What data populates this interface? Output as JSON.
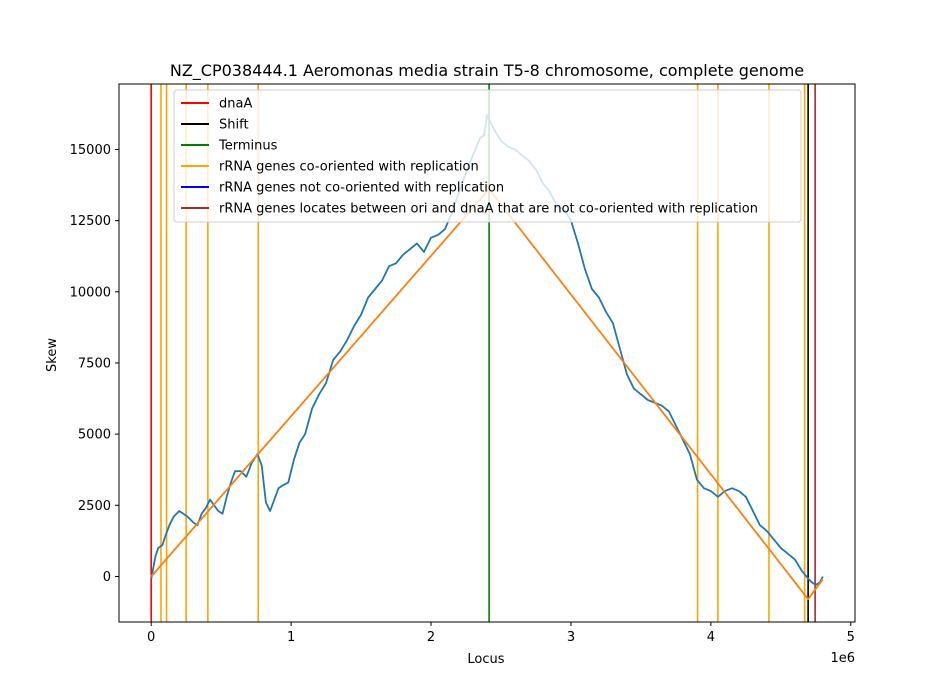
{
  "chart_data": {
    "type": "line",
    "title": "NZ_CP038444.1 Aeromonas media strain T5-8 chromosome, complete genome",
    "xlabel": "Locus",
    "ylabel": "Skew",
    "x_offset_label": "1e6",
    "xlim": [
      -230000,
      5030000
    ],
    "ylim": [
      -1600,
      17300
    ],
    "x_ticks": [
      0,
      1000000,
      2000000,
      3000000,
      4000000,
      5000000
    ],
    "x_tick_labels": [
      "0",
      "1",
      "2",
      "3",
      "4",
      "5"
    ],
    "y_ticks": [
      0,
      2500,
      5000,
      7500,
      10000,
      12500,
      15000
    ],
    "y_tick_labels": [
      "0",
      "2500",
      "5000",
      "7500",
      "10000",
      "12500",
      "15000"
    ],
    "legend_position": "upper-center",
    "legend": [
      {
        "label": "dnaA",
        "color": "#ff0000"
      },
      {
        "label": "Shift",
        "color": "#000000"
      },
      {
        "label": "Terminus",
        "color": "#008000"
      },
      {
        "label": "rRNA genes co-oriented with replication",
        "color": "#ffa500"
      },
      {
        "label": "rRNA genes not co-oriented with replication",
        "color": "#0000ff"
      },
      {
        "label": "rRNA genes locates between ori and dnaA that are not co-oriented with replication",
        "color": "#a52a2a"
      }
    ],
    "vertical_lines": [
      {
        "kind": "dnaA",
        "x": 0,
        "color": "#ff0000"
      },
      {
        "kind": "rRNA co-oriented",
        "x": 70000,
        "color": "#ffa500"
      },
      {
        "kind": "rRNA co-oriented",
        "x": 110000,
        "color": "#ffa500"
      },
      {
        "kind": "rRNA co-oriented",
        "x": 250000,
        "color": "#ffa500"
      },
      {
        "kind": "rRNA co-oriented",
        "x": 405000,
        "color": "#ffa500"
      },
      {
        "kind": "rRNA co-oriented",
        "x": 765000,
        "color": "#ffa500"
      },
      {
        "kind": "Terminus",
        "x": 2415000,
        "color": "#008000"
      },
      {
        "kind": "rRNA co-oriented",
        "x": 3905000,
        "color": "#ffa500"
      },
      {
        "kind": "rRNA co-oriented",
        "x": 4050000,
        "color": "#ffa500"
      },
      {
        "kind": "rRNA co-oriented",
        "x": 4415000,
        "color": "#ffa500"
      },
      {
        "kind": "rRNA co-oriented",
        "x": 4670000,
        "color": "#ffa500"
      },
      {
        "kind": "Shift",
        "x": 4695000,
        "color": "#000000"
      },
      {
        "kind": "rRNA between ori and dnaA",
        "x": 4745000,
        "color": "#a52a2a"
      }
    ],
    "series": [
      {
        "color": "#1f77b4",
        "x": [
          0,
          30000,
          50000,
          80000,
          100000,
          130000,
          160000,
          200000,
          230000,
          260000,
          300000,
          330000,
          360000,
          390000,
          420000,
          450000,
          480000,
          510000,
          540000,
          570000,
          600000,
          640000,
          680000,
          720000,
          760000,
          790000,
          820000,
          850000,
          880000,
          910000,
          940000,
          980000,
          1020000,
          1060000,
          1100000,
          1150000,
          1200000,
          1250000,
          1300000,
          1350000,
          1400000,
          1450000,
          1500000,
          1550000,
          1600000,
          1650000,
          1700000,
          1750000,
          1800000,
          1850000,
          1900000,
          1950000,
          2000000,
          2050000,
          2100000,
          2150000,
          2200000,
          2250000,
          2300000,
          2350000,
          2380000,
          2400000,
          2420000,
          2450000,
          2500000,
          2550000,
          2600000,
          2650000,
          2700000,
          2750000,
          2800000,
          2850000,
          2900000,
          2950000,
          3000000,
          3050000,
          3100000,
          3150000,
          3200000,
          3250000,
          3300000,
          3350000,
          3400000,
          3450000,
          3500000,
          3550000,
          3600000,
          3650000,
          3700000,
          3750000,
          3800000,
          3850000,
          3900000,
          3950000,
          4000000,
          4050000,
          4100000,
          4150000,
          4200000,
          4250000,
          4300000,
          4350000,
          4400000,
          4450000,
          4500000,
          4550000,
          4600000,
          4650000,
          4700000,
          4720000,
          4750000,
          4780000,
          4800000
        ],
        "y": [
          -100,
          700,
          1000,
          1100,
          1400,
          1800,
          2100,
          2300,
          2200,
          2100,
          1900,
          1800,
          2200,
          2400,
          2700,
          2500,
          2300,
          2200,
          2800,
          3300,
          3700,
          3700,
          3500,
          4000,
          4300,
          3900,
          2600,
          2300,
          2700,
          3100,
          3200,
          3300,
          4100,
          4700,
          5000,
          5900,
          6400,
          6800,
          7600,
          7900,
          8300,
          8800,
          9200,
          9800,
          10100,
          10400,
          10900,
          11000,
          11300,
          11500,
          11700,
          11400,
          11900,
          12000,
          12200,
          12800,
          13500,
          14200,
          14800,
          15400,
          15500,
          16200,
          16000,
          15700,
          15300,
          15100,
          15000,
          14800,
          14600,
          14300,
          13800,
          13500,
          13000,
          12900,
          12500,
          11700,
          10800,
          10100,
          9800,
          9300,
          8900,
          8000,
          7100,
          6600,
          6400,
          6200,
          6100,
          6000,
          5800,
          5300,
          4800,
          4300,
          3400,
          3100,
          3000,
          2800,
          3000,
          3100,
          3000,
          2800,
          2300,
          1800,
          1600,
          1300,
          1000,
          800,
          600,
          200,
          -100,
          -200,
          -300,
          -200,
          0
        ]
      },
      {
        "color": "#ff7f0e",
        "x": [
          0,
          2415000,
          4695000,
          4800000
        ],
        "y": [
          0,
          13600,
          -800,
          -100
        ]
      }
    ]
  }
}
